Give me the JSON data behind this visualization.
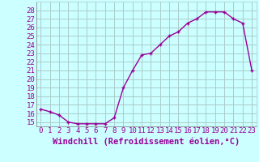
{
  "x": [
    0,
    1,
    2,
    3,
    4,
    5,
    6,
    7,
    8,
    9,
    10,
    11,
    12,
    13,
    14,
    15,
    16,
    17,
    18,
    19,
    20,
    21,
    22,
    23
  ],
  "y": [
    16.5,
    16.2,
    15.8,
    15.0,
    14.8,
    14.8,
    14.8,
    14.8,
    15.5,
    19.0,
    21.0,
    22.8,
    23.0,
    24.0,
    25.0,
    25.5,
    26.5,
    27.0,
    27.8,
    27.8,
    27.8,
    27.0,
    26.5,
    21.0
  ],
  "xlabel": "Windchill (Refroidissement éolien,°C)",
  "ylim": [
    14.5,
    29.0
  ],
  "xlim": [
    -0.5,
    23.5
  ],
  "yticks": [
    15,
    16,
    17,
    18,
    19,
    20,
    21,
    22,
    23,
    24,
    25,
    26,
    27,
    28
  ],
  "xticks": [
    0,
    1,
    2,
    3,
    4,
    5,
    6,
    7,
    8,
    9,
    10,
    11,
    12,
    13,
    14,
    15,
    16,
    17,
    18,
    19,
    20,
    21,
    22,
    23
  ],
  "line_color": "#990099",
  "marker_color": "#990099",
  "bg_color": "#ccffff",
  "grid_color": "#aacccc",
  "tick_label_color": "#990099",
  "axis_label_color": "#990099",
  "tick_fontsize": 6.5,
  "xlabel_fontsize": 7.5
}
